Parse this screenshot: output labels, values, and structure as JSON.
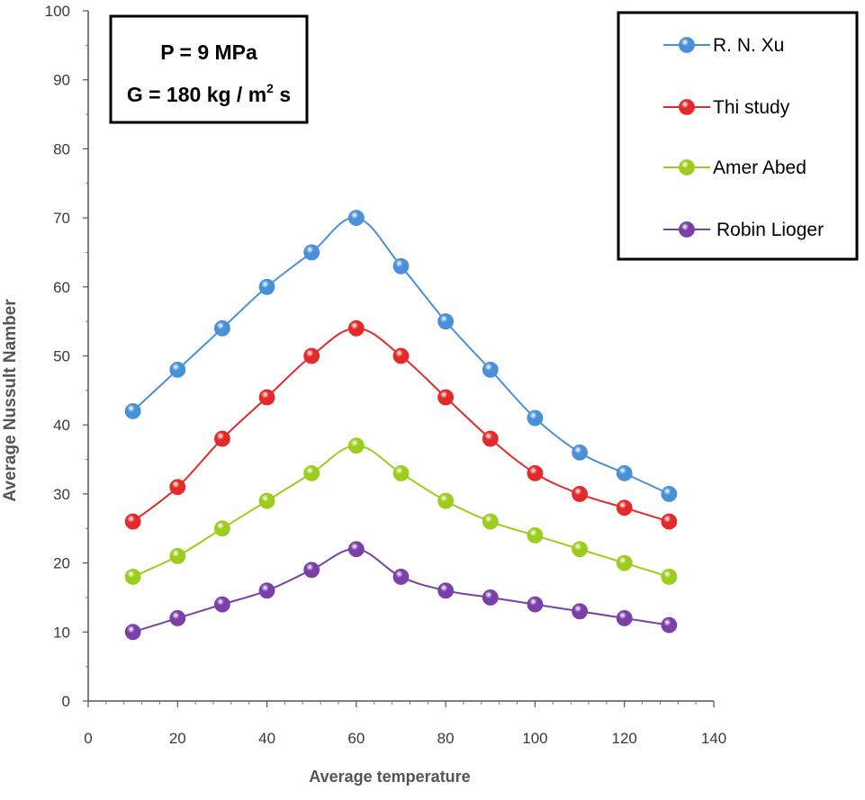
{
  "chart_data": {
    "type": "line",
    "title": "",
    "xlabel": "Average temperature",
    "ylabel": "Average Nussult Namber",
    "xlim": [
      0,
      140
    ],
    "ylim": [
      0,
      100
    ],
    "xticks": [
      0,
      20,
      40,
      60,
      80,
      100,
      120,
      140
    ],
    "yticks": [
      0,
      10,
      20,
      30,
      40,
      50,
      60,
      70,
      80,
      90,
      100
    ],
    "grid": false,
    "legend_position": "top-right",
    "annotation": {
      "line1": "P = 9 MPa",
      "line2_prefix": "G = 180 kg / m",
      "line2_sup": "2",
      "line2_suffix": " s"
    },
    "x": [
      10,
      20,
      30,
      40,
      50,
      60,
      70,
      80,
      90,
      100,
      110,
      120,
      130
    ],
    "series": [
      {
        "name": "R. N. Xu",
        "color": "#4a90d9",
        "values": [
          42,
          48,
          54,
          60,
          65,
          70,
          63,
          55,
          48,
          41,
          36,
          33,
          30
        ]
      },
      {
        "name": "Thi study",
        "color": "#e32a2a",
        "values": [
          26,
          31,
          38,
          44,
          50,
          54,
          50,
          44,
          38,
          33,
          30,
          28,
          26
        ]
      },
      {
        "name": "Amer Abed",
        "color": "#9ccc1e",
        "values": [
          18,
          21,
          25,
          29,
          33,
          37,
          33,
          29,
          26,
          24,
          22,
          20,
          18
        ]
      },
      {
        "name": "Robin Lioger",
        "color": "#7a3fa8",
        "values": [
          10,
          12,
          14,
          16,
          19,
          22,
          18,
          16,
          15,
          14,
          13,
          12,
          11
        ]
      }
    ]
  }
}
